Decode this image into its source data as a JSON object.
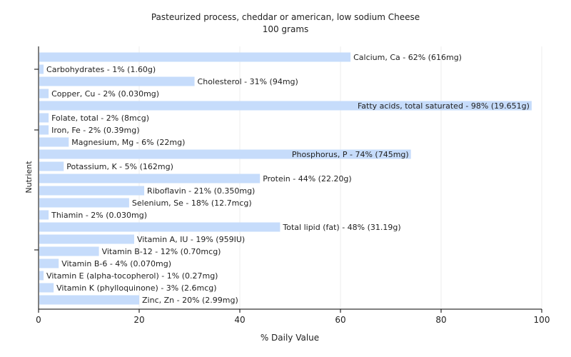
{
  "chart_data": {
    "type": "bar",
    "orientation": "horizontal",
    "title": "Pasteurized process, cheddar or american, low sodium Cheese",
    "subtitle": "100 grams",
    "xlabel": "% Daily Value",
    "ylabel": "Nutrient",
    "xlim": [
      0,
      100
    ],
    "xticks": [
      0,
      20,
      40,
      60,
      80,
      100
    ],
    "grid": true,
    "bar_color": "#c6dcfb",
    "categories": [
      "Calcium, Ca",
      "Carbohydrates",
      "Cholesterol",
      "Copper, Cu",
      "Fatty acids, total saturated",
      "Folate, total",
      "Iron, Fe",
      "Magnesium, Mg",
      "Phosphorus, P",
      "Potassium, K",
      "Protein",
      "Riboflavin",
      "Selenium, Se",
      "Thiamin",
      "Total lipid (fat)",
      "Vitamin A, IU",
      "Vitamin B-12",
      "Vitamin B-6",
      "Vitamin E (alpha-tocopherol)",
      "Vitamin K (phylloquinone)",
      "Zinc, Zn"
    ],
    "values": [
      62,
      1,
      31,
      2,
      98,
      2,
      2,
      6,
      74,
      5,
      44,
      21,
      18,
      2,
      48,
      19,
      12,
      4,
      1,
      3,
      20
    ],
    "labels": [
      "Calcium, Ca - 62% (616mg)",
      "Carbohydrates - 1% (1.60g)",
      "Cholesterol - 31% (94mg)",
      "Copper, Cu - 2% (0.030mg)",
      "Fatty acids, total saturated - 98% (19.651g)",
      "Folate, total - 2% (8mcg)",
      "Iron, Fe - 2% (0.39mg)",
      "Magnesium, Mg - 6% (22mg)",
      "Phosphorus, P - 74% (745mg)",
      "Potassium, K - 5% (162mg)",
      "Protein - 44% (22.20g)",
      "Riboflavin - 21% (0.350mg)",
      "Selenium, Se - 18% (12.7mcg)",
      "Thiamin - 2% (0.030mg)",
      "Total lipid (fat) - 48% (31.19g)",
      "Vitamin A, IU - 19% (959IU)",
      "Vitamin B-12 - 12% (0.70mcg)",
      "Vitamin B-6 - 4% (0.070mg)",
      "Vitamin E (alpha-tocopherol) - 1% (0.27mg)",
      "Vitamin K (phylloquinone) - 3% (2.6mcg)",
      "Zinc, Zn - 20% (2.99mg)"
    ]
  }
}
